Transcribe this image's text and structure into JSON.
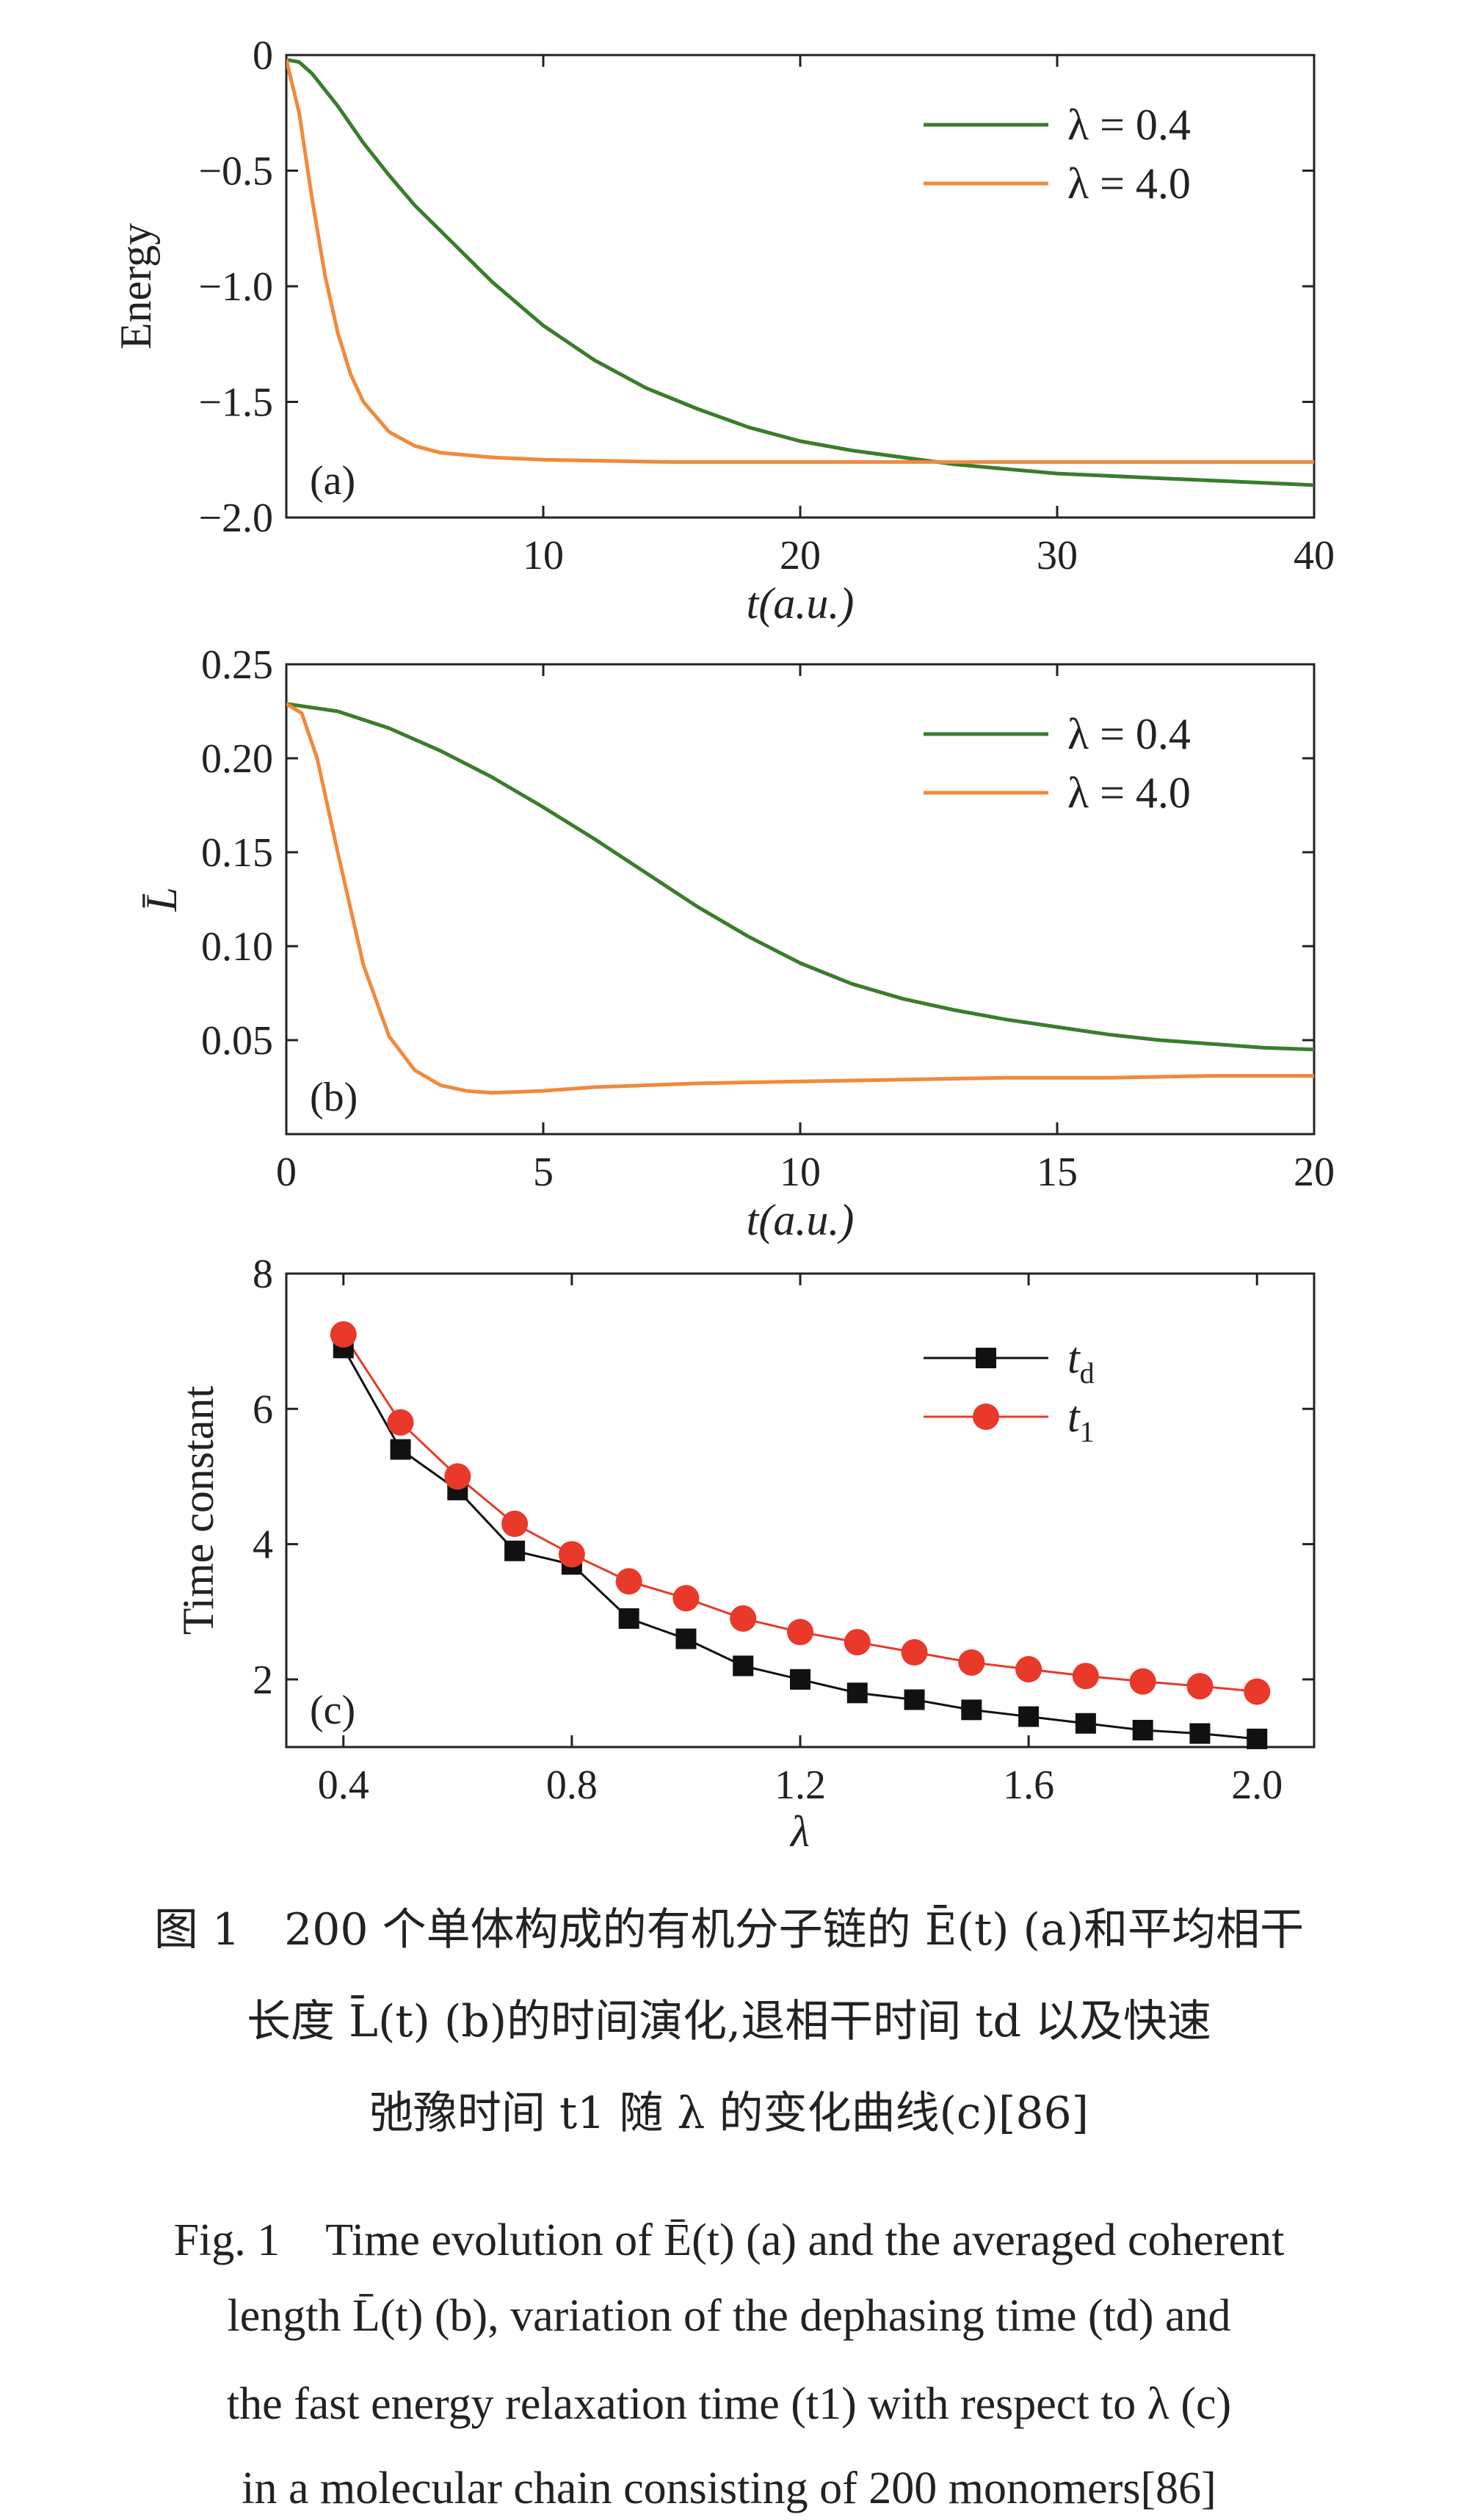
{
  "chart_data": [
    {
      "type": "line",
      "panel_label": "(a)",
      "xlabel": "t(a.u.)",
      "ylabel": "Energy",
      "xlim": [
        0,
        40
      ],
      "ylim": [
        -2.0,
        0
      ],
      "xticks": [
        10,
        20,
        30,
        40
      ],
      "yticks": [
        0,
        -0.5,
        -1.0,
        -1.5,
        -2.0
      ],
      "xtick_labels": [
        "10",
        "20",
        "30",
        "40"
      ],
      "ytick_labels": [
        "0",
        "−0.5",
        "−1.0",
        "−1.5",
        "−2.0"
      ],
      "legend_position": "top-right",
      "series": [
        {
          "name": "λ = 0.4",
          "color": "#3a7d2c",
          "x": [
            0,
            0.5,
            1,
            2,
            3,
            4,
            5,
            6,
            8,
            10,
            12,
            14,
            16,
            18,
            20,
            22,
            24,
            26,
            28,
            30,
            32,
            34,
            36,
            38,
            40
          ],
          "y": [
            -0.02,
            -0.03,
            -0.08,
            -0.22,
            -0.38,
            -0.52,
            -0.65,
            -0.76,
            -0.98,
            -1.17,
            -1.32,
            -1.44,
            -1.53,
            -1.61,
            -1.67,
            -1.71,
            -1.74,
            -1.77,
            -1.79,
            -1.81,
            -1.82,
            -1.83,
            -1.84,
            -1.85,
            -1.86
          ]
        },
        {
          "name": "λ = 4.0",
          "color": "#f08a3c",
          "x": [
            0,
            0.5,
            1,
            1.5,
            2,
            2.5,
            3,
            4,
            5,
            6,
            8,
            10,
            15,
            20,
            25,
            30,
            35,
            40
          ],
          "y": [
            -0.02,
            -0.25,
            -0.62,
            -0.95,
            -1.2,
            -1.38,
            -1.5,
            -1.63,
            -1.69,
            -1.72,
            -1.74,
            -1.75,
            -1.76,
            -1.76,
            -1.76,
            -1.76,
            -1.76,
            -1.76
          ]
        }
      ]
    },
    {
      "type": "line",
      "panel_label": "(b)",
      "xlabel": "t(a.u.)",
      "ylabel": "L̄",
      "xlim": [
        0,
        20
      ],
      "ylim": [
        0.0,
        0.25
      ],
      "xticks": [
        0,
        5,
        10,
        15,
        20
      ],
      "yticks": [
        0.05,
        0.1,
        0.15,
        0.2,
        0.25
      ],
      "xtick_labels": [
        "0",
        "5",
        "10",
        "15",
        "20"
      ],
      "ytick_labels": [
        "0.05",
        "0.10",
        "0.15",
        "0.20",
        "0.25"
      ],
      "legend_position": "top-right",
      "series": [
        {
          "name": "λ = 0.4",
          "color": "#3a7d2c",
          "x": [
            0,
            1,
            2,
            3,
            4,
            5,
            6,
            7,
            8,
            9,
            10,
            11,
            12,
            13,
            14,
            15,
            16,
            17,
            18,
            19,
            20
          ],
          "y": [
            0.229,
            0.225,
            0.216,
            0.204,
            0.19,
            0.174,
            0.157,
            0.139,
            0.121,
            0.105,
            0.091,
            0.08,
            0.072,
            0.066,
            0.061,
            0.057,
            0.053,
            0.05,
            0.048,
            0.046,
            0.045
          ]
        },
        {
          "name": "λ = 4.0",
          "color": "#f08a3c",
          "x": [
            0,
            0.3,
            0.6,
            1.0,
            1.5,
            2.0,
            2.5,
            3.0,
            3.5,
            4,
            5,
            6,
            8,
            10,
            12,
            14,
            16,
            18,
            20
          ],
          "y": [
            0.229,
            0.224,
            0.2,
            0.15,
            0.09,
            0.052,
            0.034,
            0.026,
            0.023,
            0.022,
            0.023,
            0.025,
            0.027,
            0.028,
            0.029,
            0.03,
            0.03,
            0.031,
            0.031
          ]
        }
      ]
    },
    {
      "type": "line",
      "panel_label": "(c)",
      "xlabel": "λ",
      "ylabel": "Time constant",
      "xlim": [
        0.3,
        2.1
      ],
      "ylim": [
        1,
        8
      ],
      "xticks": [
        0.4,
        0.8,
        1.2,
        1.6,
        2.0
      ],
      "yticks": [
        2,
        4,
        6,
        8
      ],
      "xtick_labels": [
        "0.4",
        "0.8",
        "1.2",
        "1.6",
        "2.0"
      ],
      "ytick_labels": [
        "2",
        "4",
        "6",
        "8"
      ],
      "legend_position": "top-right",
      "series": [
        {
          "name": "td",
          "name_main": "t",
          "name_sub": "d",
          "color": "#111111",
          "marker": "square",
          "x": [
            0.4,
            0.5,
            0.6,
            0.7,
            0.8,
            0.9,
            1.0,
            1.1,
            1.2,
            1.3,
            1.4,
            1.5,
            1.6,
            1.7,
            1.8,
            1.9,
            2.0
          ],
          "y": [
            6.9,
            5.4,
            4.8,
            3.9,
            3.7,
            2.9,
            2.6,
            2.2,
            2.0,
            1.8,
            1.7,
            1.55,
            1.45,
            1.35,
            1.25,
            1.2,
            1.12
          ]
        },
        {
          "name": "t1",
          "name_main": "t",
          "name_sub": "1",
          "color": "#e8392a",
          "marker": "circle",
          "x": [
            0.4,
            0.5,
            0.6,
            0.7,
            0.8,
            0.9,
            1.0,
            1.1,
            1.2,
            1.3,
            1.4,
            1.5,
            1.6,
            1.7,
            1.8,
            1.9,
            2.0
          ],
          "y": [
            7.1,
            5.8,
            5.0,
            4.3,
            3.85,
            3.45,
            3.2,
            2.9,
            2.7,
            2.55,
            2.4,
            2.25,
            2.15,
            2.05,
            1.97,
            1.9,
            1.82
          ]
        }
      ]
    }
  ],
  "caption": {
    "zh_line1": "图 1　200 个单体构成的有机分子链的 Ē(t) (a)和平均相干",
    "zh_line2": "长度 L̄(t) (b)的时间演化,退相干时间 td 以及快速",
    "zh_line3": "弛豫时间 t1 随 λ 的变化曲线(c)[86]",
    "en_line1": "Fig. 1　Time evolution of Ē(t) (a) and the averaged coherent",
    "en_line2": "length L̄(t) (b), variation of the dephasing time (td) and",
    "en_line3": "the fast energy relaxation time (t1) with respect to λ (c)",
    "en_line4": "in a molecular chain consisting of 200 monomers[86]"
  }
}
